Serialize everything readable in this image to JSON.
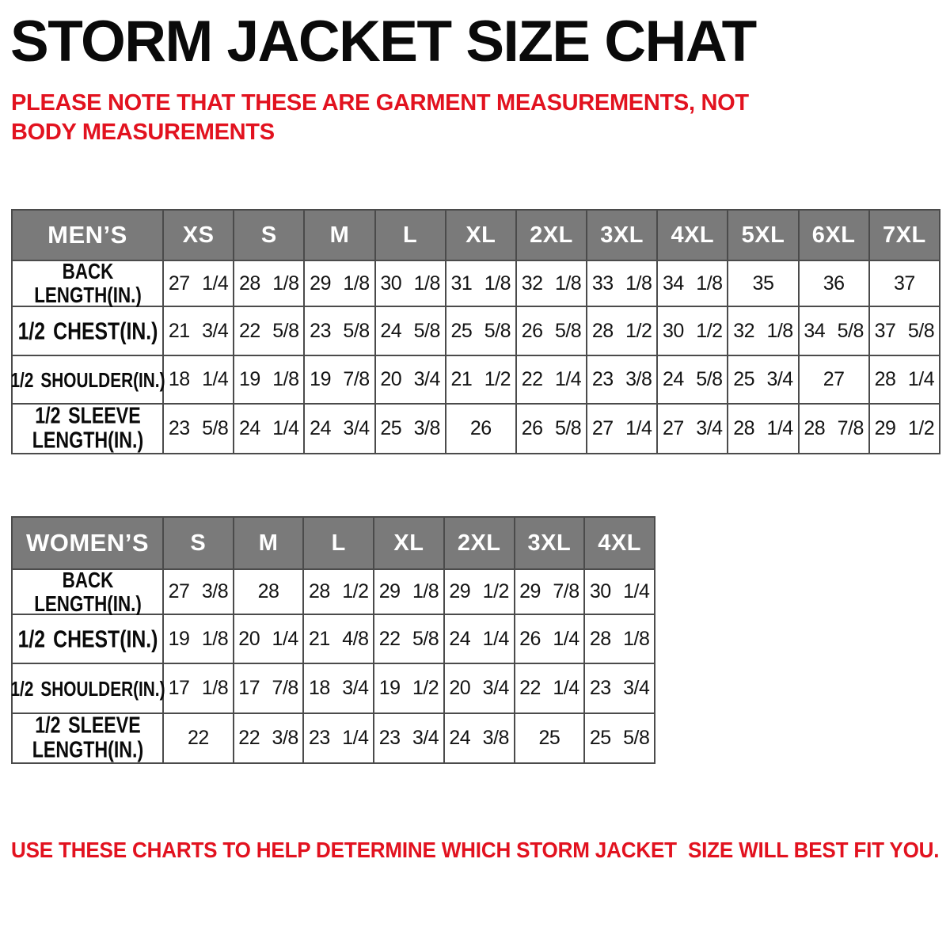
{
  "page": {
    "title": "STORM JACKET SIZE CHAT",
    "note_top": "PLEASE NOTE THAT THESE ARE GARMENT MEASUREMENTS, NOT BODY MEASUREMENTS",
    "note_bottom": "USE THESE CHARTS TO HELP DETERMINE WHICH STORM JACKET  SIZE WILL BEST FIT YOU."
  },
  "colors": {
    "header_bg": "#7a7a7a",
    "header_text": "#ffffff",
    "accent_red": "#e2121f",
    "grid_border": "#4b4b4b"
  },
  "mens": {
    "title": "MEN’S",
    "sizes": [
      "XS",
      "S",
      "M",
      "L",
      "XL",
      "2XL",
      "3XL",
      "4XL",
      "5XL",
      "6XL",
      "7XL"
    ],
    "rows": [
      {
        "label": "BACK\nLENGTH(IN.)",
        "values": [
          "27 1/4",
          "28 1/8",
          "29 1/8",
          "30 1/8",
          "31 1/8",
          "32 1/8",
          "33 1/8",
          "34 1/8",
          "35",
          "36",
          "37"
        ]
      },
      {
        "label": "1/2 CHEST(IN.)",
        "values": [
          "21 3/4",
          "22 5/8",
          "23 5/8",
          "24 5/8",
          "25 5/8",
          "26 5/8",
          "28 1/2",
          "30 1/2",
          "32 1/8",
          "34 5/8",
          "37 5/8"
        ]
      },
      {
        "label": "1/2 SHOULDER(IN.)",
        "values": [
          "18 1/4",
          "19 1/8",
          "19 7/8",
          "20 3/4",
          "21 1/2",
          "22 1/4",
          "23 3/8",
          "24 5/8",
          "25 3/4",
          "27",
          "28 1/4"
        ]
      },
      {
        "label": "1/2 SLEEVE\nLENGTH(IN.)",
        "values": [
          "23 5/8",
          "24 1/4",
          "24 3/4",
          "25 3/8",
          "26",
          "26 5/8",
          "27 1/4",
          "27 3/4",
          "28 1/4",
          "28 7/8",
          "29 1/2"
        ]
      }
    ]
  },
  "womens": {
    "title": "WOMEN’S",
    "sizes": [
      "S",
      "M",
      "L",
      "XL",
      "2XL",
      "3XL",
      "4XL"
    ],
    "rows": [
      {
        "label": "BACK\nLENGTH(IN.)",
        "values": [
          "27 3/8",
          "28",
          "28 1/2",
          "29 1/8",
          "29 1/2",
          "29 7/8",
          "30 1/4"
        ]
      },
      {
        "label": "1/2 CHEST(IN.)",
        "values": [
          "19 1/8",
          "20 1/4",
          "21 4/8",
          "22 5/8",
          "24 1/4",
          "26 1/4",
          "28 1/8"
        ]
      },
      {
        "label": "1/2 SHOULDER(IN.)",
        "values": [
          "17 1/8",
          "17 7/8",
          "18 3/4",
          "19 1/2",
          "20 3/4",
          "22 1/4",
          "23 3/4"
        ]
      },
      {
        "label": "1/2 SLEEVE\nLENGTH(IN.)",
        "values": [
          "22",
          "22 3/8",
          "23 1/4",
          "23 3/4",
          "24 3/8",
          "25",
          "25 5/8"
        ]
      }
    ]
  }
}
